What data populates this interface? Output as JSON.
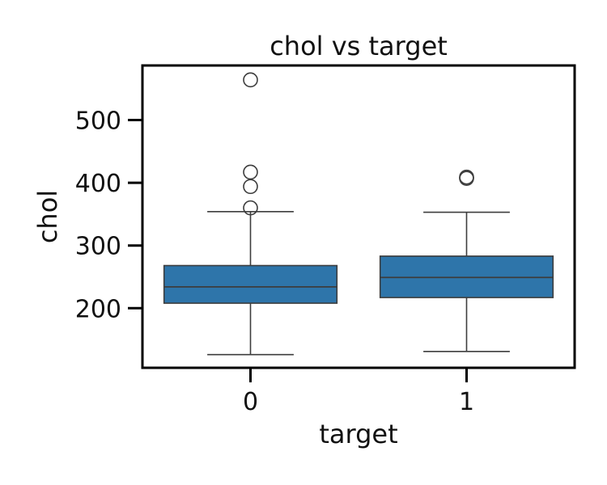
{
  "chart_data": {
    "type": "box",
    "title": "chol vs target",
    "xlabel": "target",
    "ylabel": "chol",
    "categories": [
      "0",
      "1"
    ],
    "yticks": [
      200,
      300,
      400,
      500
    ],
    "ylim": [
      105,
      587
    ],
    "grid": false,
    "legend": "none",
    "box_color": "#2e75aa",
    "line_color": "#3d3d3d",
    "boxes": [
      {
        "category": "0",
        "whisker_low": 126,
        "q1": 208,
        "median": 234,
        "q3": 268,
        "whisker_high": 354,
        "outliers": [
          360,
          394,
          417,
          564
        ]
      },
      {
        "category": "1",
        "whisker_low": 131,
        "q1": 217,
        "median": 249,
        "q3": 283,
        "whisker_high": 353,
        "outliers": [
          407,
          409
        ]
      }
    ]
  }
}
